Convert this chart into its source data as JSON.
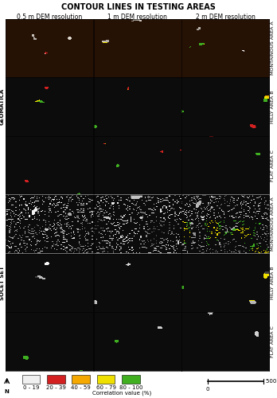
{
  "title": "CONTOUR LINES IN TESTING AREAS",
  "col_labels": [
    "0.5 m DEM resolution",
    "1 m DEM resolution",
    "2 m DEM resolution"
  ],
  "row_labels_left_top": "GEOMATICA",
  "row_labels_left_bottom": "SOCET SET",
  "row_sublabels_right": [
    "MONTAINOUS AREA A",
    "HILLY AREA B",
    "FLAT AREA C",
    "MONTAINOUS AREA A",
    "HILLY AREA B",
    "FLAT AREA C"
  ],
  "legend_items": [
    {
      "label": "0 - 19",
      "color": "#f0f0f0"
    },
    {
      "label": "20 - 39",
      "color": "#d42020"
    },
    {
      "label": "40 - 59",
      "color": "#f5a800"
    },
    {
      "label": "60 - 79",
      "color": "#f0e000"
    },
    {
      "label": "80 - 100",
      "color": "#40b020"
    }
  ],
  "legend_title": "Correlation value (%)",
  "scale_label": "500 m",
  "figure_bg": "#ffffff",
  "border_color": "#000000",
  "title_fontsize": 7,
  "col_label_fontsize": 5.5,
  "row_label_fontsize": 4.5,
  "legend_fontsize": 5,
  "colors": {
    "white": [
      0.94,
      0.94,
      0.94
    ],
    "red": [
      0.83,
      0.13,
      0.13
    ],
    "orange": [
      0.96,
      0.66,
      0.0
    ],
    "yellow": [
      0.94,
      0.88,
      0.0
    ],
    "green": [
      0.25,
      0.69,
      0.13
    ],
    "lgray": [
      0.85,
      0.85,
      0.85
    ],
    "mgray": [
      0.65,
      0.65,
      0.65
    ],
    "dgray": [
      0.4,
      0.4,
      0.4
    ],
    "black": [
      0.05,
      0.05,
      0.05
    ],
    "brown": [
      0.35,
      0.18,
      0.05
    ],
    "dbrown": [
      0.15,
      0.07,
      0.02
    ]
  }
}
